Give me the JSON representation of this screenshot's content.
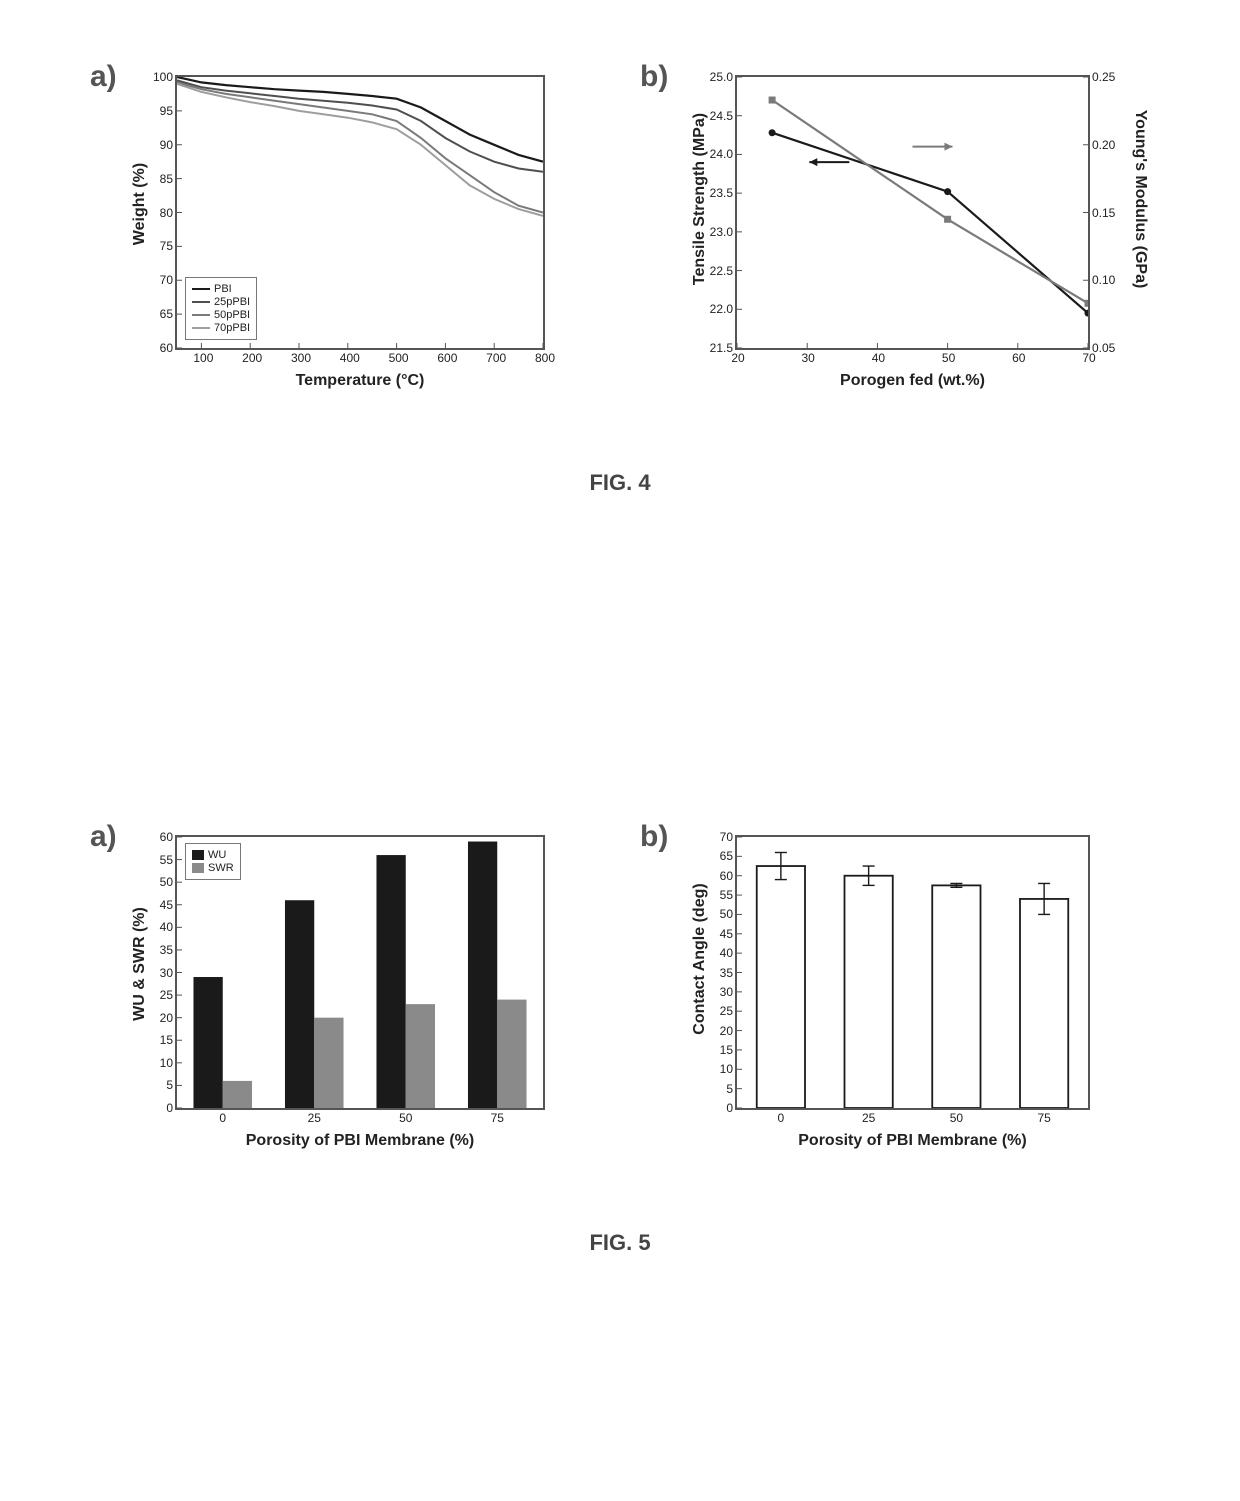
{
  "fig4": {
    "caption": "FIG. 4",
    "caption_fontsize": 22,
    "panel_a": {
      "label": "a)",
      "label_fontsize": 30,
      "type": "line",
      "xlabel": "Temperature (°C)",
      "ylabel": "Weight (%)",
      "label_fontsize_axis": 16,
      "xlim": [
        50,
        800
      ],
      "ylim": [
        60,
        100
      ],
      "xticks": [
        100,
        200,
        300,
        400,
        500,
        600,
        700,
        800
      ],
      "yticks": [
        60,
        65,
        70,
        75,
        80,
        85,
        90,
        95,
        100
      ],
      "tick_fontsize": 12,
      "background_color": "#ffffff",
      "axis_color": "#555555",
      "series": [
        {
          "name": "PBI",
          "color": "#1a1a1a",
          "width": 2.2,
          "data": [
            [
              50,
              100
            ],
            [
              100,
              99.2
            ],
            [
              150,
              98.8
            ],
            [
              200,
              98.5
            ],
            [
              250,
              98.2
            ],
            [
              300,
              98.0
            ],
            [
              350,
              97.8
            ],
            [
              400,
              97.5
            ],
            [
              450,
              97.2
            ],
            [
              500,
              96.8
            ],
            [
              550,
              95.5
            ],
            [
              600,
              93.5
            ],
            [
              650,
              91.5
            ],
            [
              700,
              90.0
            ],
            [
              750,
              88.5
            ],
            [
              800,
              87.5
            ]
          ]
        },
        {
          "name": "25pPBI",
          "color": "#4f4f4f",
          "width": 2.0,
          "data": [
            [
              50,
              99.5
            ],
            [
              100,
              98.5
            ],
            [
              150,
              98.0
            ],
            [
              200,
              97.6
            ],
            [
              250,
              97.2
            ],
            [
              300,
              96.8
            ],
            [
              350,
              96.5
            ],
            [
              400,
              96.2
            ],
            [
              450,
              95.8
            ],
            [
              500,
              95.2
            ],
            [
              550,
              93.5
            ],
            [
              600,
              91.0
            ],
            [
              650,
              89.0
            ],
            [
              700,
              87.5
            ],
            [
              750,
              86.5
            ],
            [
              800,
              86.0
            ]
          ]
        },
        {
          "name": "50pPBI",
          "color": "#7a7a7a",
          "width": 2.0,
          "data": [
            [
              50,
              99.2
            ],
            [
              100,
              98.2
            ],
            [
              150,
              97.5
            ],
            [
              200,
              97.0
            ],
            [
              250,
              96.5
            ],
            [
              300,
              96.0
            ],
            [
              350,
              95.5
            ],
            [
              400,
              95.0
            ],
            [
              450,
              94.5
            ],
            [
              500,
              93.5
            ],
            [
              550,
              91.0
            ],
            [
              600,
              88.0
            ],
            [
              650,
              85.5
            ],
            [
              700,
              83.0
            ],
            [
              750,
              81.0
            ],
            [
              800,
              80.0
            ]
          ]
        },
        {
          "name": "70pPBI",
          "color": "#9e9e9e",
          "width": 2.0,
          "data": [
            [
              50,
              99.0
            ],
            [
              100,
              97.8
            ],
            [
              150,
              97.0
            ],
            [
              200,
              96.3
            ],
            [
              250,
              95.7
            ],
            [
              300,
              95.0
            ],
            [
              350,
              94.5
            ],
            [
              400,
              94.0
            ],
            [
              450,
              93.3
            ],
            [
              500,
              92.3
            ],
            [
              550,
              90.0
            ],
            [
              600,
              87.0
            ],
            [
              650,
              84.0
            ],
            [
              700,
              82.0
            ],
            [
              750,
              80.5
            ],
            [
              800,
              79.5
            ]
          ]
        }
      ],
      "legend": {
        "position": "lower-left"
      }
    },
    "panel_b": {
      "label": "b)",
      "label_fontsize": 30,
      "type": "line",
      "xlabel": "Porogen fed (wt.%)",
      "ylabel_left": "Tensile Strength (MPa)",
      "ylabel_right": "Young's Modulus (GPa)",
      "label_fontsize_axis": 16,
      "xlim": [
        20,
        70
      ],
      "ylim_left": [
        21.5,
        25.0
      ],
      "ylim_right": [
        0.05,
        0.25
      ],
      "xticks": [
        20,
        30,
        40,
        50,
        60,
        70
      ],
      "yticks_left": [
        21.5,
        22.0,
        22.5,
        23.0,
        23.5,
        24.0,
        24.5,
        25.0
      ],
      "yticks_right": [
        0.05,
        0.1,
        0.15,
        0.2,
        0.25
      ],
      "tick_fontsize": 12,
      "background_color": "#ffffff",
      "axis_color": "#555555",
      "series": [
        {
          "name": "tensile",
          "axis": "left",
          "color": "#1a1a1a",
          "marker": "circle",
          "marker_size": 7,
          "width": 2.2,
          "data": [
            [
              25,
              24.28
            ],
            [
              50,
              23.52
            ],
            [
              70,
              21.95
            ]
          ]
        },
        {
          "name": "modulus",
          "axis": "right",
          "color": "#7a7a7a",
          "marker": "square",
          "marker_size": 7,
          "width": 2.2,
          "data": [
            [
              25,
              0.233
            ],
            [
              50,
              0.145
            ],
            [
              70,
              0.083
            ]
          ]
        }
      ],
      "arrows": [
        {
          "origin_x": 36,
          "point": "left",
          "y_left": 23.9,
          "color": "#1a1a1a"
        },
        {
          "origin_x": 45,
          "point": "right",
          "y_left": 24.1,
          "color": "#7a7a7a"
        }
      ]
    }
  },
  "fig5": {
    "caption": "FIG. 5",
    "caption_fontsize": 22,
    "panel_a": {
      "label": "a)",
      "label_fontsize": 30,
      "type": "bar",
      "xlabel": "Porosity of  PBI Membrane (%)",
      "ylabel": "WU & SWR (%)",
      "label_fontsize_axis": 16,
      "xlim": [
        -0.5,
        3.5
      ],
      "ylim": [
        0,
        60
      ],
      "categories": [
        0,
        25,
        50,
        75
      ],
      "yticks": [
        0,
        5,
        10,
        15,
        20,
        25,
        30,
        35,
        40,
        45,
        50,
        55,
        60
      ],
      "tick_fontsize": 12,
      "background_color": "#ffffff",
      "axis_color": "#555555",
      "bar_group_gap": 0.25,
      "bar_width": 0.32,
      "series": [
        {
          "name": "WU",
          "color": "#1a1a1a",
          "values": [
            29,
            46,
            56,
            59
          ]
        },
        {
          "name": "SWR",
          "color": "#8a8a8a",
          "values": [
            6,
            20,
            23,
            24
          ]
        }
      ],
      "legend": {
        "position": "upper-left"
      }
    },
    "panel_b": {
      "label": "b)",
      "label_fontsize": 30,
      "type": "bar",
      "xlabel": "Porosity of  PBI Membrane (%)",
      "ylabel": "Contact Angle (deg)",
      "label_fontsize_axis": 16,
      "xlim": [
        -0.5,
        3.5
      ],
      "ylim": [
        0,
        70
      ],
      "categories": [
        0,
        25,
        50,
        75
      ],
      "yticks": [
        0,
        5,
        10,
        15,
        20,
        25,
        30,
        35,
        40,
        45,
        50,
        55,
        60,
        65,
        70
      ],
      "tick_fontsize": 12,
      "background_color": "#ffffff",
      "axis_color": "#555555",
      "bar_width": 0.55,
      "series": [
        {
          "name": "contact_angle",
          "fill": "#ffffff",
          "stroke": "#1a1a1a",
          "stroke_width": 1.8,
          "values": [
            62.5,
            60,
            57.5,
            54
          ],
          "errors": [
            3.5,
            2.5,
            0.5,
            4
          ]
        }
      ]
    }
  }
}
